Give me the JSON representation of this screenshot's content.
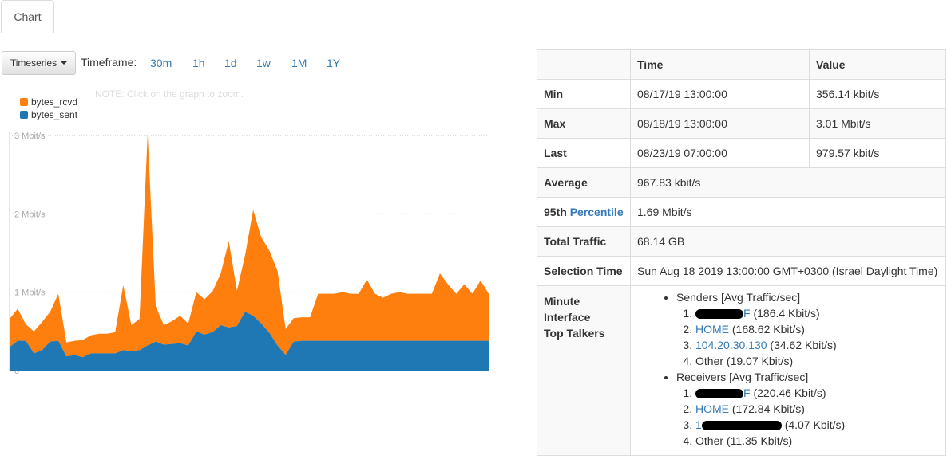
{
  "tabs": [
    {
      "label": "Chart",
      "active": true
    }
  ],
  "toolbar": {
    "view_select": "Timeseries",
    "timeframe_label": "Timeframe:",
    "timeframes": [
      "30m",
      "1h",
      "1d",
      "1w",
      "1M",
      "1Y"
    ]
  },
  "note": "NOTE: Click on the graph to zoom.",
  "chart_data": {
    "type": "area",
    "stacked": true,
    "ylim": [
      0,
      3
    ],
    "yunit": "Mbit/s",
    "yticks": [
      "0",
      "1 Mbit/s",
      "2 Mbit/s",
      "3 Mbit/s"
    ],
    "legend_position": "top-left",
    "series": [
      {
        "name": "bytes_sent",
        "color": "#1f77b4",
        "values": [
          0.3,
          0.38,
          0.38,
          0.22,
          0.26,
          0.37,
          0.38,
          0.18,
          0.2,
          0.17,
          0.22,
          0.22,
          0.22,
          0.22,
          0.26,
          0.25,
          0.26,
          0.32,
          0.37,
          0.33,
          0.34,
          0.35,
          0.32,
          0.5,
          0.46,
          0.49,
          0.58,
          0.55,
          0.57,
          0.75,
          0.7,
          0.6,
          0.48,
          0.32,
          0.2,
          0.37,
          0.38,
          0.38,
          0.38,
          0.38,
          0.38,
          0.38,
          0.38,
          0.38,
          0.38,
          0.38,
          0.38,
          0.38,
          0.38,
          0.38,
          0.38,
          0.38,
          0.38,
          0.38,
          0.38,
          0.38,
          0.38,
          0.38,
          0.38,
          0.38
        ]
      },
      {
        "name": "bytes_rcvd",
        "color": "#ff7f0e",
        "values": [
          0.36,
          0.41,
          0.21,
          0.28,
          0.36,
          0.38,
          0.6,
          0.18,
          0.18,
          0.22,
          0.23,
          0.25,
          0.25,
          0.27,
          0.83,
          0.33,
          0.4,
          2.7,
          0.45,
          0.25,
          0.29,
          0.35,
          0.28,
          0.5,
          0.45,
          0.52,
          0.66,
          1.1,
          0.45,
          0.72,
          1.35,
          1.1,
          1.05,
          0.95,
          0.33,
          0.3,
          0.3,
          0.3,
          0.6,
          0.6,
          0.6,
          0.62,
          0.6,
          0.6,
          0.78,
          0.6,
          0.55,
          0.6,
          0.62,
          0.6,
          0.6,
          0.6,
          0.6,
          0.86,
          0.72,
          0.6,
          0.72,
          0.6,
          0.77,
          0.6
        ]
      }
    ]
  },
  "stats": {
    "headers": [
      "",
      "Time",
      "Value"
    ],
    "min": {
      "label": "Min",
      "time": "08/17/19 13:00:00",
      "value": "356.14 kbit/s"
    },
    "max": {
      "label": "Max",
      "time": "08/18/19 13:00:00",
      "value": "3.01 Mbit/s"
    },
    "last": {
      "label": "Last",
      "time": "08/23/19 07:00:00",
      "value": "979.57 kbit/s"
    },
    "average": {
      "label": "Average",
      "value": "967.83 kbit/s"
    },
    "percentile": {
      "label_prefix": "95th",
      "label_link": "Percentile",
      "value": "1.69 Mbit/s"
    },
    "total": {
      "label": "Total Traffic",
      "value": "68.14 GB"
    },
    "selection": {
      "label": "Selection Time",
      "value": "Sun Aug 18 2019 13:00:00 GMT+0300 (Israel Daylight Time)"
    },
    "talkers": {
      "label_line1": "Minute",
      "label_line2": "Interface",
      "label_line3": "Top Talkers",
      "senders_title": "Senders [Avg Traffic/sec]",
      "senders": [
        {
          "name_visible": "F",
          "redacted": true,
          "value": "(186.4 Kbit/s)"
        },
        {
          "name_visible": "HOME",
          "redacted": false,
          "value": "(168.62 Kbit/s)"
        },
        {
          "name_visible": "104.20.30.130",
          "redacted": false,
          "value": "(34.62 Kbit/s)"
        },
        {
          "name_visible": "Other",
          "redacted": false,
          "plain": true,
          "value": "(19.07 Kbit/s)"
        }
      ],
      "receivers_title": "Receivers [Avg Traffic/sec]",
      "receivers": [
        {
          "name_visible": "F",
          "redacted": true,
          "value": "(220.46 Kbit/s)"
        },
        {
          "name_visible": "HOME",
          "redacted": false,
          "value": "(172.84 Kbit/s)"
        },
        {
          "name_visible": "1",
          "redacted": true,
          "value": "(4.07 Kbit/s)"
        },
        {
          "name_visible": "Other",
          "redacted": false,
          "plain": true,
          "value": "(11.35 Kbit/s)"
        }
      ]
    }
  }
}
